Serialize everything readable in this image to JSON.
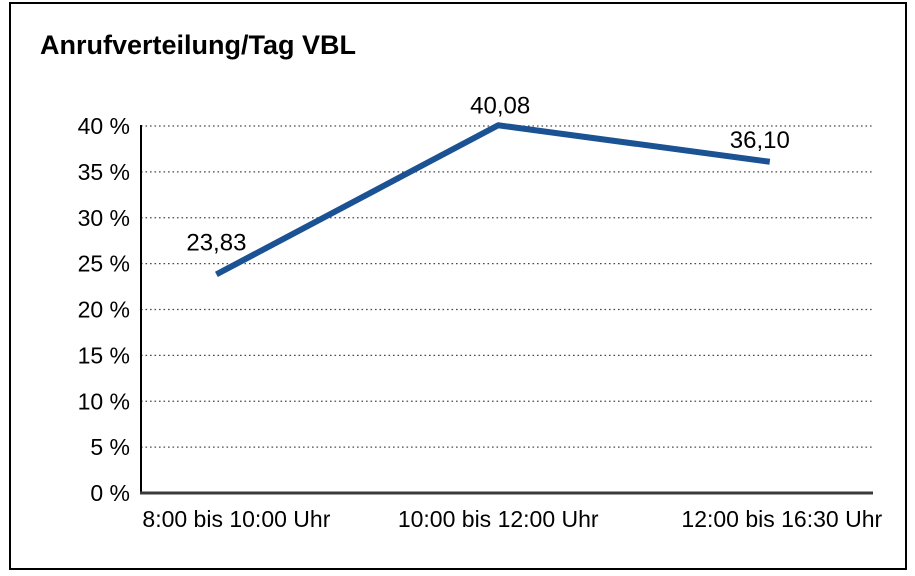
{
  "chart_data": {
    "type": "line",
    "title": "Anrufverteilung/Tag VBL",
    "categories": [
      "8:00 bis 10:00 Uhr",
      "10:00 bis 12:00 Uhr",
      "12:00 bis 16:30 Uhr"
    ],
    "values": [
      23.83,
      40.08,
      36.1
    ],
    "value_labels": [
      "23,83",
      "40,08",
      "36,10"
    ],
    "xlabel": "",
    "ylabel": "",
    "ylim": [
      0,
      40
    ],
    "y_tick_step": 5,
    "y_tick_labels": [
      "0 %",
      "5 %",
      "10 %",
      "15 %",
      "20 %",
      "25 %",
      "30 %",
      "35 %",
      "40 %"
    ],
    "grid": "horizontal-dotted",
    "legend": "none",
    "colors": {
      "line": "#1A5293",
      "grid": "#4a4a4a",
      "y_axis": "#000000",
      "x_axis": "#3a3a3a",
      "text": "#000000",
      "background": "#ffffff",
      "border": "#000000"
    }
  }
}
